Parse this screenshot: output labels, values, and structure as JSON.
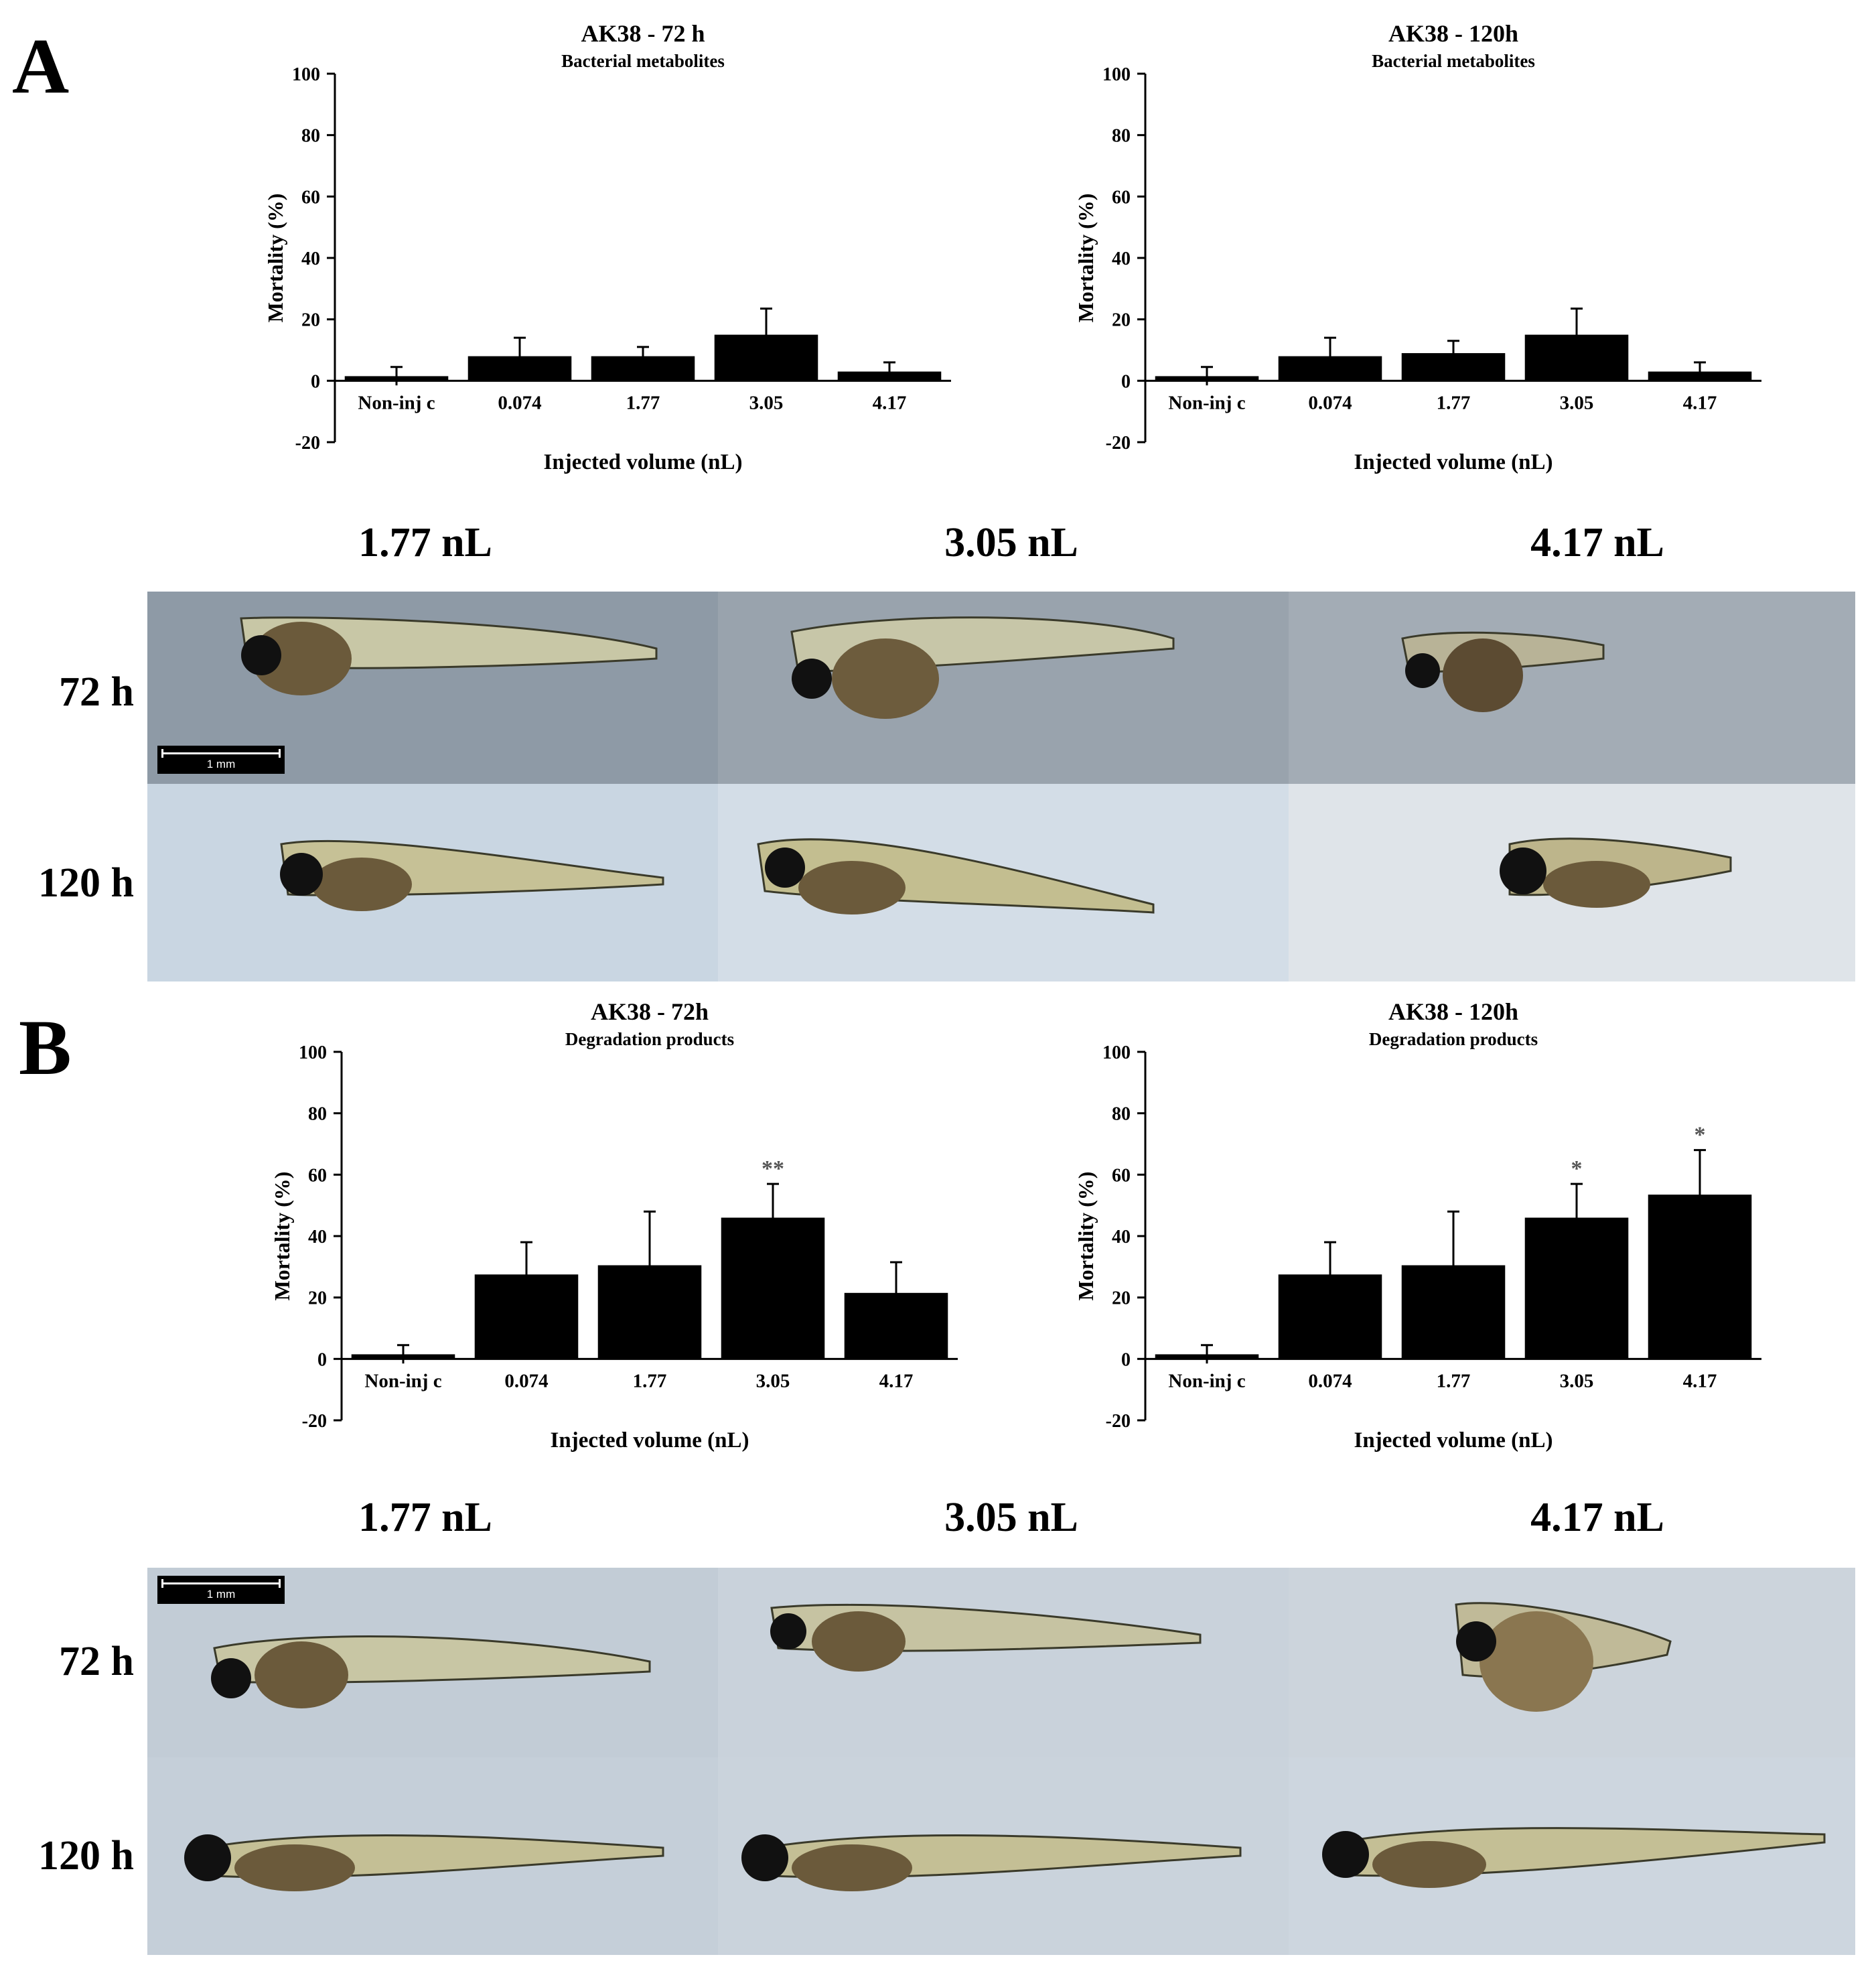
{
  "panels": {
    "A": {
      "letter": "A",
      "dose_labels": [
        "1.77 nL",
        "3.05 nL",
        "4.17 nL"
      ],
      "time_labels": [
        "72 h",
        "120 h"
      ],
      "scalebar": "1 mm"
    },
    "B": {
      "letter": "B",
      "dose_labels": [
        "1.77 nL",
        "3.05 nL",
        "4.17 nL"
      ],
      "time_labels": [
        "72 h",
        "120 h"
      ],
      "scalebar": "1 mm"
    }
  },
  "chart_data": [
    {
      "type": "bar",
      "title": "AK38 - 72 h",
      "subtitle": "Bacterial metabolites",
      "xlabel": "Injected volume (nL)",
      "ylabel": "Mortality (%)",
      "categories": [
        "Non-inj c",
        "0.074",
        "1.77",
        "3.05",
        "4.17"
      ],
      "values": [
        1.5,
        8,
        8,
        15,
        3
      ],
      "errors": [
        3,
        6,
        3,
        8.5,
        3
      ],
      "annotations": [
        "",
        "",
        "",
        "",
        ""
      ],
      "yticks": [
        "100",
        "80",
        "60",
        "40",
        "20",
        "0",
        "-20"
      ],
      "ylim": [
        -20,
        100
      ],
      "bar_color": "#000000"
    },
    {
      "type": "bar",
      "title": "AK38 - 120h",
      "subtitle": "Bacterial metabolites",
      "xlabel": "Injected volume (nL)",
      "ylabel": "Mortality (%)",
      "categories": [
        "Non-inj c",
        "0.074",
        "1.77",
        "3.05",
        "4.17"
      ],
      "values": [
        1.5,
        8,
        9,
        15,
        3
      ],
      "errors": [
        3,
        6,
        4,
        8.5,
        3
      ],
      "annotations": [
        "",
        "",
        "",
        "",
        ""
      ],
      "yticks": [
        "100",
        "80",
        "60",
        "40",
        "20",
        "0",
        "-20"
      ],
      "ylim": [
        -20,
        100
      ],
      "bar_color": "#000000"
    },
    {
      "type": "bar",
      "title": "AK38 - 72h",
      "subtitle": "Degradation products",
      "xlabel": "Injected volume (nL)",
      "ylabel": "Mortality (%)",
      "categories": [
        "Non-inj c",
        "0.074",
        "1.77",
        "3.05",
        "4.17"
      ],
      "values": [
        1.5,
        27.5,
        30.5,
        46,
        21.5
      ],
      "errors": [
        3,
        10.5,
        17.5,
        11,
        10
      ],
      "annotations": [
        "",
        "",
        "",
        "**",
        ""
      ],
      "yticks": [
        "100",
        "80",
        "60",
        "40",
        "20",
        "0",
        "-20"
      ],
      "ylim": [
        -20,
        100
      ],
      "bar_color": "#000000"
    },
    {
      "type": "bar",
      "title": "AK38 - 120h",
      "subtitle": "Degradation products",
      "xlabel": "Injected volume (nL)",
      "ylabel": "Mortality (%)",
      "categories": [
        "Non-inj c",
        "0.074",
        "1.77",
        "3.05",
        "4.17"
      ],
      "values": [
        1.5,
        27.5,
        30.5,
        46,
        53.5
      ],
      "errors": [
        3,
        10.5,
        17.5,
        11,
        14.5
      ],
      "annotations": [
        "",
        "",
        "",
        "*",
        "*"
      ],
      "yticks": [
        "100",
        "80",
        "60",
        "40",
        "20",
        "0",
        "-20"
      ],
      "ylim": [
        -20,
        100
      ],
      "bar_color": "#000000"
    }
  ]
}
